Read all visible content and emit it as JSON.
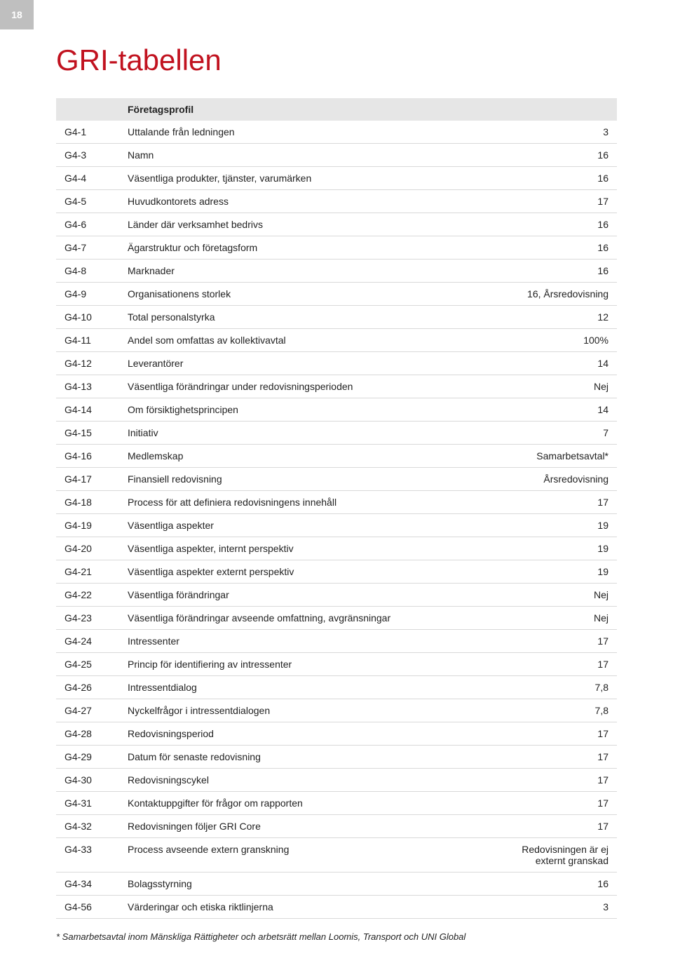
{
  "page_number": "18",
  "title": "GRI-tabellen",
  "colors": {
    "page_num_bg": "#bfbfbf",
    "page_num_text": "#ffffff",
    "title_color": "#c1121f",
    "section_bg": "#e6e6e6",
    "row_border": "#d9d9d9",
    "text_color": "#222222"
  },
  "section_header": "Företagsprofil",
  "rows": [
    {
      "code": "G4-1",
      "desc": "Uttalande från ledningen",
      "val": "3"
    },
    {
      "code": "G4-3",
      "desc": "Namn",
      "val": "16"
    },
    {
      "code": "G4-4",
      "desc": "Väsentliga produkter, tjänster, varumärken",
      "val": "16"
    },
    {
      "code": "G4-5",
      "desc": "Huvudkontorets adress",
      "val": "17"
    },
    {
      "code": "G4-6",
      "desc": "Länder där verksamhet bedrivs",
      "val": "16"
    },
    {
      "code": "G4-7",
      "desc": "Ägarstruktur och företagsform",
      "val": "16"
    },
    {
      "code": "G4-8",
      "desc": "Marknader",
      "val": "16"
    },
    {
      "code": "G4-9",
      "desc": "Organisationens storlek",
      "val": "16, Årsredovisning"
    },
    {
      "code": "G4-10",
      "desc": "Total personalstyrka",
      "val": "12"
    },
    {
      "code": "G4-11",
      "desc": "Andel som omfattas av kollektivavtal",
      "val": "100%"
    },
    {
      "code": "G4-12",
      "desc": "Leverantörer",
      "val": "14"
    },
    {
      "code": "G4-13",
      "desc": "Väsentliga förändringar under redovisningsperioden",
      "val": "Nej"
    },
    {
      "code": "G4-14",
      "desc": "Om försiktighetsprincipen",
      "val": "14"
    },
    {
      "code": "G4-15",
      "desc": "Initiativ",
      "val": "7"
    },
    {
      "code": "G4-16",
      "desc": "Medlemskap",
      "val": "Samarbetsavtal*"
    },
    {
      "code": "G4-17",
      "desc": "Finansiell redovisning",
      "val": "Årsredovisning"
    },
    {
      "code": "G4-18",
      "desc": "Process för att definiera redovisningens innehåll",
      "val": "17"
    },
    {
      "code": "G4-19",
      "desc": "Väsentliga aspekter",
      "val": "19"
    },
    {
      "code": "G4-20",
      "desc": "Väsentliga aspekter, internt perspektiv",
      "val": "19"
    },
    {
      "code": "G4-21",
      "desc": "Väsentliga aspekter externt perspektiv",
      "val": "19"
    },
    {
      "code": "G4-22",
      "desc": "Väsentliga förändringar",
      "val": "Nej"
    },
    {
      "code": "G4-23",
      "desc": "Väsentliga förändringar avseende omfattning, avgränsningar",
      "val": "Nej"
    },
    {
      "code": "G4-24",
      "desc": "Intressenter",
      "val": "17"
    },
    {
      "code": "G4-25",
      "desc": "Princip för identifiering av intressenter",
      "val": "17"
    },
    {
      "code": "G4-26",
      "desc": "Intressentdialog",
      "val": "7,8"
    },
    {
      "code": "G4-27",
      "desc": "Nyckelfrågor  i  intressentdialogen",
      "val": "7,8"
    },
    {
      "code": "G4-28",
      "desc": "Redovisningsperiod",
      "val": "17"
    },
    {
      "code": "G4-29",
      "desc": "Datum för senaste redovisning",
      "val": "17"
    },
    {
      "code": "G4-30",
      "desc": "Redovisningscykel",
      "val": "17"
    },
    {
      "code": "G4-31",
      "desc": "Kontaktuppgifter för frågor om rapporten",
      "val": "17"
    },
    {
      "code": "G4-32",
      "desc": "Redovisningen följer GRI Core",
      "val": "17"
    },
    {
      "code": "G4-33",
      "desc": "Process avseende extern granskning",
      "val": "Redovisningen är ej\nexternt granskad"
    },
    {
      "code": "G4-34",
      "desc": "Bolagsstyrning",
      "val": "16"
    },
    {
      "code": "G4-56",
      "desc": "Värderingar och etiska riktlinjerna",
      "val": "3"
    }
  ],
  "footnote": "* Samarbetsavtal inom Mänskliga Rättigheter och arbetsrätt mellan Loomis, Transport och UNI Global"
}
